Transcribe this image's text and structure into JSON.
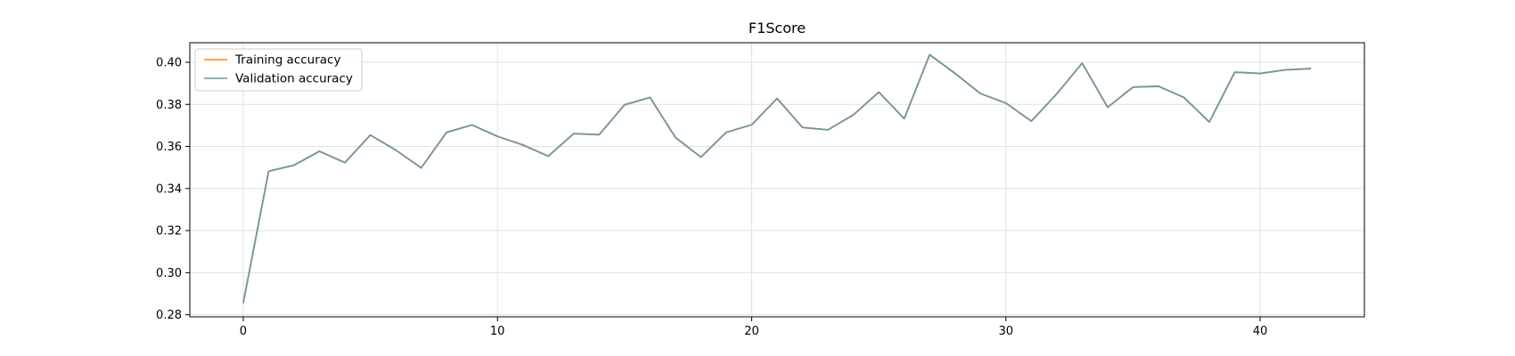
{
  "chart_data": {
    "type": "line",
    "title": "F1Score",
    "xlabel": "",
    "ylabel": "",
    "xlim": [
      -2.1,
      44.1
    ],
    "ylim": [
      0.279,
      0.4093
    ],
    "xticks": [
      0,
      10,
      20,
      30,
      40
    ],
    "yticks": [
      0.28,
      0.3,
      0.32,
      0.34,
      0.36,
      0.38,
      0.4
    ],
    "grid": true,
    "legend_position": "top-left",
    "series": [
      {
        "name": "Training accuracy",
        "color": "#ff7f0e",
        "x": [
          0,
          1,
          2,
          3,
          4,
          5,
          6,
          7,
          8,
          9,
          10,
          11,
          12,
          13,
          14,
          15,
          16,
          17,
          18,
          19,
          20,
          21,
          22,
          23,
          24,
          25,
          26,
          27,
          28,
          29,
          30,
          31,
          32,
          33,
          34,
          35,
          36,
          37,
          38,
          39,
          40,
          41,
          42
        ],
        "y": [
          0.2855,
          0.3482,
          0.3511,
          0.3577,
          0.3523,
          0.3654,
          0.3583,
          0.3498,
          0.3667,
          0.3702,
          0.3648,
          0.3607,
          0.3554,
          0.3661,
          0.3656,
          0.3798,
          0.3833,
          0.3643,
          0.3549,
          0.3667,
          0.3703,
          0.3828,
          0.369,
          0.3679,
          0.375,
          0.3858,
          0.3732,
          0.4036,
          0.3947,
          0.3851,
          0.3806,
          0.372,
          0.385,
          0.3996,
          0.3786,
          0.3882,
          0.3886,
          0.3833,
          0.3716,
          0.3953,
          0.3947,
          0.3964,
          0.397
        ]
      },
      {
        "name": "Validation accuracy",
        "color": "#5f9ea0",
        "x": [
          0,
          1,
          2,
          3,
          4,
          5,
          6,
          7,
          8,
          9,
          10,
          11,
          12,
          13,
          14,
          15,
          16,
          17,
          18,
          19,
          20,
          21,
          22,
          23,
          24,
          25,
          26,
          27,
          28,
          29,
          30,
          31,
          32,
          33,
          34,
          35,
          36,
          37,
          38,
          39,
          40,
          41,
          42
        ],
        "y": [
          0.2855,
          0.3482,
          0.3511,
          0.3577,
          0.3523,
          0.3654,
          0.3583,
          0.3498,
          0.3667,
          0.3702,
          0.3648,
          0.3607,
          0.3554,
          0.3661,
          0.3656,
          0.3798,
          0.3833,
          0.3643,
          0.3549,
          0.3667,
          0.3703,
          0.3828,
          0.369,
          0.3679,
          0.375,
          0.3858,
          0.3732,
          0.4036,
          0.3947,
          0.3851,
          0.3806,
          0.372,
          0.385,
          0.3996,
          0.3786,
          0.3882,
          0.3886,
          0.3833,
          0.3716,
          0.3953,
          0.3947,
          0.3964,
          0.397
        ]
      }
    ]
  }
}
